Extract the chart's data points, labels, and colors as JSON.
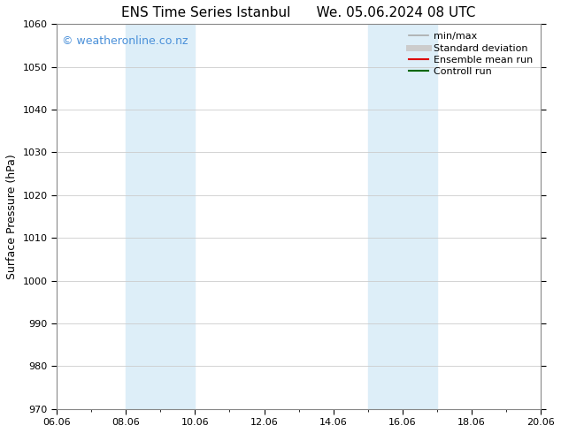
{
  "title_left": "ENS Time Series Istanbul",
  "title_right": "We. 05.06.2024 08 UTC",
  "ylabel": "Surface Pressure (hPa)",
  "ylim": [
    970,
    1060
  ],
  "yticks": [
    970,
    980,
    990,
    1000,
    1010,
    1020,
    1030,
    1040,
    1050,
    1060
  ],
  "xtick_labels": [
    "06.06",
    "08.06",
    "10.06",
    "12.06",
    "14.06",
    "16.06",
    "18.06",
    "20.06"
  ],
  "xtick_positions": [
    0,
    2,
    4,
    6,
    8,
    10,
    12,
    14
  ],
  "xlim": [
    0,
    14
  ],
  "shaded_bands": [
    {
      "x_start": 2.0,
      "x_end": 4.0
    },
    {
      "x_start": 9.0,
      "x_end": 11.0
    }
  ],
  "shade_color": "#ddeef8",
  "watermark_text": "© weatheronline.co.nz",
  "watermark_color": "#4a90d9",
  "legend_entries": [
    {
      "label": "min/max",
      "color": "#aaaaaa",
      "lw": 1.2,
      "style": "solid"
    },
    {
      "label": "Standard deviation",
      "color": "#cccccc",
      "lw": 5,
      "style": "solid"
    },
    {
      "label": "Ensemble mean run",
      "color": "#dd0000",
      "lw": 1.5,
      "style": "solid"
    },
    {
      "label": "Controll run",
      "color": "#006600",
      "lw": 1.5,
      "style": "solid"
    }
  ],
  "bg_color": "#ffffff",
  "grid_color": "#cccccc",
  "axis_label_fontsize": 9,
  "title_fontsize": 11,
  "tick_fontsize": 8,
  "legend_fontsize": 8,
  "watermark_fontsize": 9
}
